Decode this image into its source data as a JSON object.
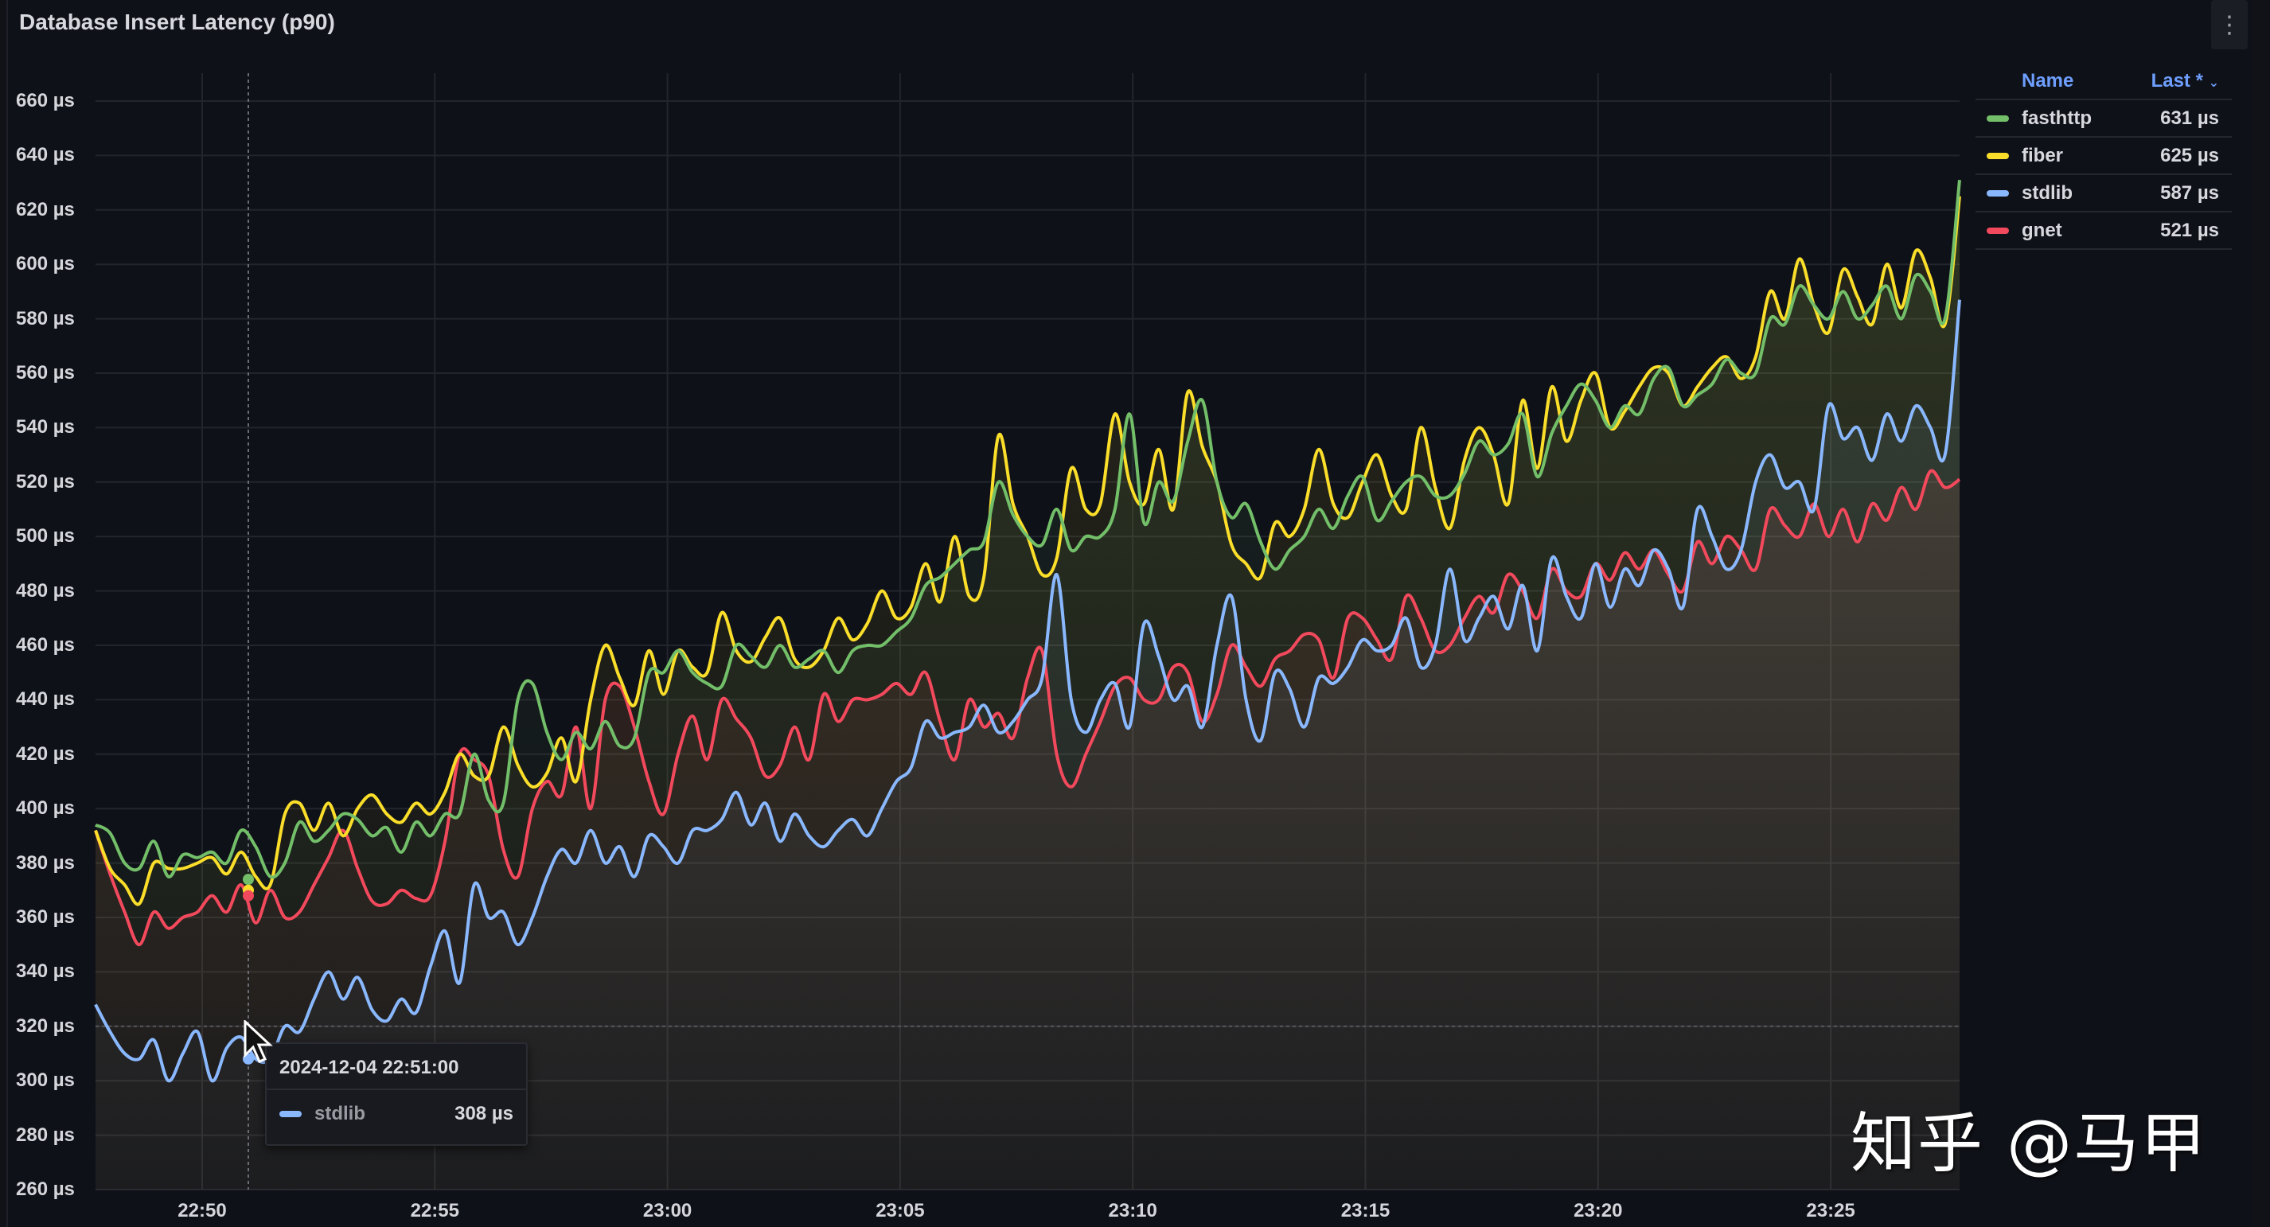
{
  "panel": {
    "title": "Database Insert Latency (p90)",
    "menu_icon": "kebab-menu-icon"
  },
  "legend": {
    "header_name": "Name",
    "header_last": "Last *",
    "items": [
      {
        "name": "fasthttp",
        "last": "631 µs",
        "color": "#73bf69"
      },
      {
        "name": "fiber",
        "last": "625 µs",
        "color": "#fade2a"
      },
      {
        "name": "stdlib",
        "last": "587 µs",
        "color": "#8ab8ff"
      },
      {
        "name": "gnet",
        "last": "521 µs",
        "color": "#f2495c"
      }
    ]
  },
  "tooltip": {
    "time": "2024-12-04 22:51:00",
    "series": "stdlib",
    "value": "308 µs",
    "color": "#8ab8ff"
  },
  "watermark": "知乎 @马甲",
  "chart_data": {
    "type": "line",
    "title": "Database Insert Latency (p90)",
    "xlabel": "",
    "ylabel": "",
    "unit": "µs",
    "ylim": [
      260,
      660
    ],
    "yticks": [
      "660 µs",
      "640 µs",
      "620 µs",
      "600 µs",
      "580 µs",
      "560 µs",
      "540 µs",
      "520 µs",
      "500 µs",
      "480 µs",
      "460 µs",
      "440 µs",
      "420 µs",
      "400 µs",
      "380 µs",
      "360 µs",
      "340 µs",
      "320 µs",
      "300 µs",
      "280 µs",
      "260 µs"
    ],
    "xticks": [
      "22:50",
      "22:55",
      "23:00",
      "23:05",
      "23:10",
      "23:15",
      "23:20",
      "23:25"
    ],
    "x_range": [
      "22:47:40",
      "23:27:40"
    ],
    "grid": true,
    "legend_position": "right",
    "fill": "gradient-area",
    "series": [
      {
        "name": "fasthttp",
        "color": "#73bf69",
        "last": 631,
        "values": [
          394,
          391,
          380,
          378,
          388,
          375,
          383,
          382,
          384,
          380,
          392,
          386,
          375,
          380,
          395,
          388,
          392,
          398,
          396,
          390,
          393,
          384,
          395,
          390,
          398,
          398,
          420,
          403,
          402,
          440,
          446,
          428,
          418,
          428,
          422,
          432,
          423,
          426,
          450,
          450,
          458,
          450,
          446,
          445,
          460,
          456,
          452,
          460,
          452,
          455,
          458,
          450,
          458,
          460,
          460,
          465,
          470,
          482,
          485,
          490,
          495,
          498,
          520,
          508,
          500,
          497,
          510,
          495,
          500,
          500,
          510,
          545,
          505,
          520,
          513,
          535,
          550,
          520,
          507,
          512,
          498,
          488,
          495,
          500,
          510,
          503,
          515,
          522,
          506,
          513,
          520,
          522,
          515,
          515,
          523,
          535,
          530,
          534,
          545,
          522,
          538,
          548,
          556,
          550,
          540,
          548,
          545,
          558,
          562,
          548,
          552,
          556,
          565,
          560,
          560,
          580,
          578,
          592,
          585,
          580,
          590,
          580,
          585,
          592,
          580,
          596,
          590,
          580,
          631
        ]
      },
      {
        "name": "fiber",
        "color": "#fade2a",
        "last": 625,
        "values": [
          392,
          378,
          372,
          365,
          380,
          378,
          378,
          380,
          382,
          376,
          384,
          375,
          372,
          398,
          402,
          392,
          402,
          390,
          400,
          405,
          398,
          395,
          402,
          398,
          406,
          420,
          412,
          412,
          430,
          416,
          408,
          413,
          426,
          410,
          440,
          460,
          448,
          438,
          458,
          442,
          458,
          452,
          450,
          472,
          458,
          454,
          463,
          470,
          455,
          452,
          458,
          470,
          462,
          468,
          480,
          470,
          474,
          490,
          476,
          500,
          478,
          485,
          537,
          512,
          500,
          486,
          492,
          525,
          510,
          512,
          545,
          520,
          512,
          532,
          510,
          553,
          533,
          520,
          497,
          490,
          485,
          505,
          500,
          510,
          532,
          512,
          507,
          520,
          530,
          515,
          510,
          540,
          518,
          503,
          528,
          540,
          530,
          512,
          550,
          525,
          555,
          535,
          550,
          560,
          540,
          546,
          555,
          562,
          560,
          548,
          555,
          562,
          566,
          558,
          566,
          590,
          580,
          602,
          585,
          575,
          598,
          588,
          578,
          600,
          584,
          605,
          595,
          578,
          625
        ]
      },
      {
        "name": "stdlib",
        "color": "#8ab8ff",
        "last": 587,
        "values": [
          328,
          318,
          310,
          308,
          315,
          300,
          310,
          318,
          300,
          312,
          316,
          308,
          308,
          320,
          318,
          330,
          340,
          330,
          338,
          326,
          322,
          330,
          325,
          342,
          355,
          336,
          372,
          360,
          362,
          350,
          360,
          375,
          385,
          380,
          392,
          380,
          386,
          375,
          390,
          386,
          380,
          392,
          392,
          396,
          406,
          394,
          402,
          388,
          398,
          390,
          386,
          392,
          396,
          390,
          400,
          410,
          415,
          432,
          426,
          428,
          430,
          438,
          428,
          432,
          440,
          448,
          486,
          440,
          428,
          440,
          446,
          430,
          468,
          456,
          440,
          445,
          430,
          460,
          478,
          440,
          425,
          450,
          444,
          430,
          448,
          446,
          452,
          462,
          458,
          460,
          470,
          452,
          460,
          488,
          462,
          470,
          478,
          466,
          482,
          458,
          492,
          478,
          470,
          490,
          474,
          488,
          482,
          495,
          488,
          474,
          510,
          500,
          488,
          495,
          520,
          530,
          518,
          520,
          510,
          548,
          536,
          540,
          528,
          545,
          535,
          548,
          540,
          530,
          587
        ]
      },
      {
        "name": "gnet",
        "color": "#f2495c",
        "last": 521,
        "values": [
          392,
          376,
          362,
          350,
          362,
          356,
          360,
          362,
          368,
          362,
          372,
          358,
          370,
          360,
          362,
          372,
          382,
          392,
          378,
          366,
          365,
          370,
          367,
          368,
          388,
          420,
          418,
          412,
          385,
          375,
          400,
          410,
          405,
          430,
          400,
          440,
          445,
          430,
          410,
          398,
          420,
          434,
          418,
          440,
          433,
          426,
          412,
          416,
          430,
          418,
          442,
          432,
          440,
          440,
          442,
          446,
          442,
          450,
          432,
          418,
          440,
          430,
          435,
          426,
          448,
          458,
          420,
          408,
          420,
          432,
          445,
          448,
          440,
          440,
          452,
          450,
          432,
          442,
          460,
          452,
          445,
          455,
          458,
          464,
          462,
          448,
          470,
          470,
          462,
          455,
          478,
          470,
          458,
          460,
          470,
          478,
          472,
          486,
          480,
          470,
          488,
          480,
          478,
          490,
          484,
          494,
          488,
          495,
          486,
          480,
          498,
          490,
          500,
          495,
          488,
          510,
          504,
          500,
          512,
          500,
          510,
          498,
          512,
          506,
          518,
          510,
          524,
          518,
          521
        ]
      }
    ]
  }
}
